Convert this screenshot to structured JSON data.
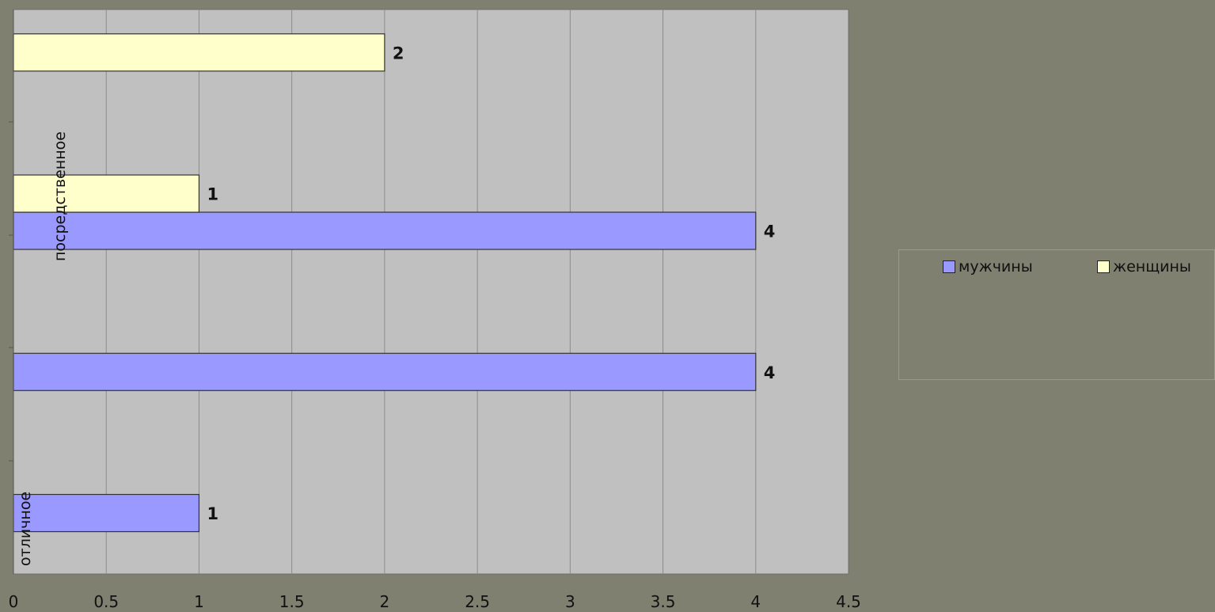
{
  "chart_data": {
    "type": "bar",
    "orientation": "horizontal",
    "categories": [
      "отличное",
      "",
      "посредственное",
      ""
    ],
    "category_labels_shown": [
      "отличное",
      "посредственное"
    ],
    "series": [
      {
        "name": "мужчины",
        "color": "#9999ff",
        "values": [
          1,
          4,
          4,
          null
        ]
      },
      {
        "name": "женщины",
        "color": "#ffffcc",
        "values": [
          null,
          null,
          1,
          2
        ]
      }
    ],
    "xlim": [
      0,
      4.5
    ],
    "xticks": [
      0,
      0.5,
      1,
      1.5,
      2,
      2.5,
      3,
      3.5,
      4,
      4.5
    ],
    "xtick_labels": [
      "0",
      "0.5",
      "1",
      "1.5",
      "2",
      "2.5",
      "3",
      "3.5",
      "4",
      "4.5"
    ],
    "gridlines": "vertical",
    "plot_background": "#c0c0c0",
    "legend_position": "right",
    "data_labels": true
  },
  "category_text": {
    "top": "посредственное",
    "bottom": "отличное"
  },
  "legend": {
    "items": [
      {
        "label": "мужчины",
        "color": "#9999ff"
      },
      {
        "label": "женщины",
        "color": "#ffffcc"
      }
    ]
  }
}
